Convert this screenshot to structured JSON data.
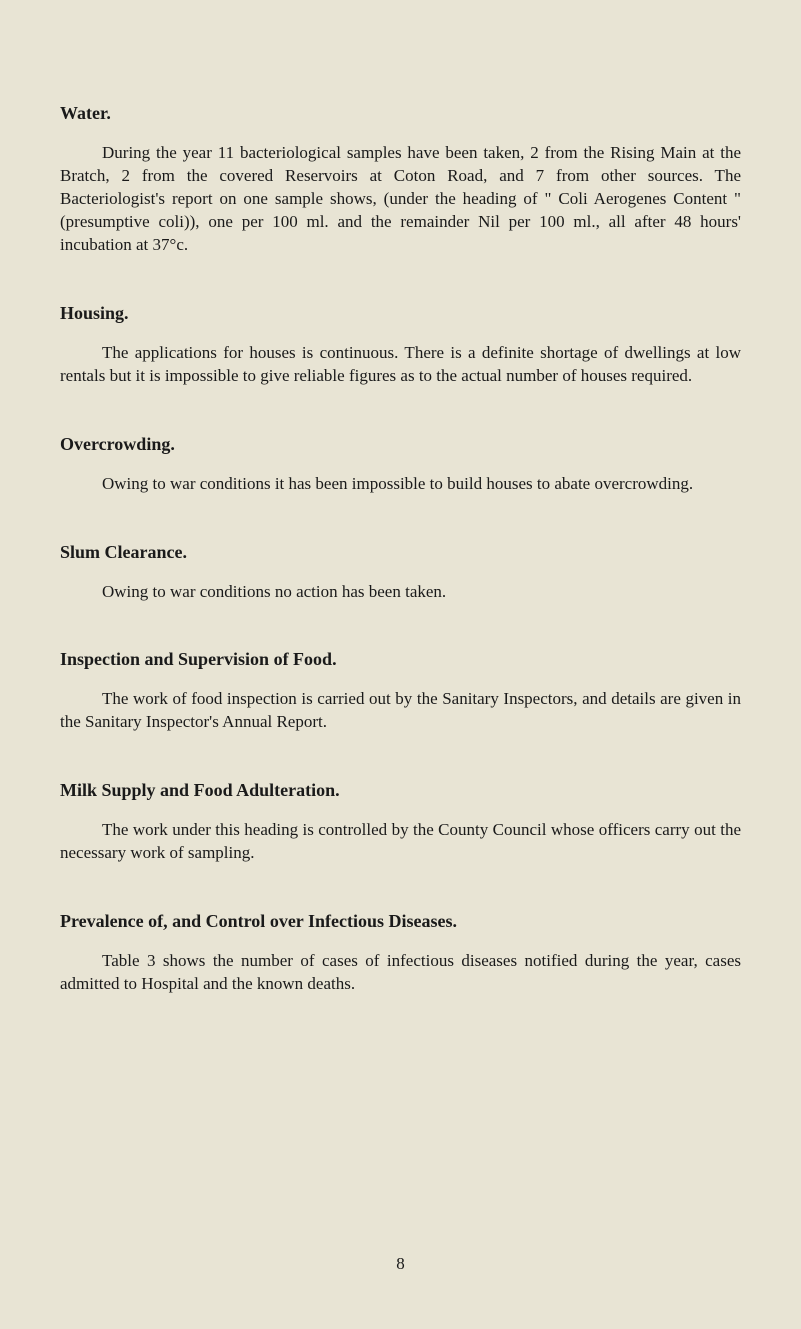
{
  "sections": {
    "water": {
      "heading": "Water.",
      "paragraph": "During the year 11 bacteriological samples have been taken, 2 from the Rising Main at the Bratch, 2 from the covered Reservoirs at Coton Road, and 7 from other sources. The Bacteriologist's report on one sample shows, (under the heading of \" Coli Aerogenes Content \" (presumptive coli)), one per 100 ml. and the remainder Nil per 100 ml., all after 48 hours' incubation at 37°c."
    },
    "housing": {
      "heading": "Housing.",
      "paragraph": "The applications for houses is continuous. There is a definite shortage of dwellings at low rentals but it is impossible to give reliable figures as to the actual number of houses required."
    },
    "overcrowding": {
      "heading": "Overcrowding.",
      "paragraph": "Owing to war conditions it has been impossible to build houses to abate overcrowding."
    },
    "slum": {
      "heading": "Slum Clearance.",
      "paragraph": "Owing to war conditions no action has been taken."
    },
    "inspection": {
      "heading": "Inspection and Supervision of Food.",
      "paragraph": "The work of food inspection is carried out by the Sanitary Inspectors, and details are given in the Sanitary Inspector's Annual Report."
    },
    "milk": {
      "heading": "Milk Supply and Food Adulteration.",
      "paragraph": "The work under this heading is controlled by the County Council whose officers carry out the necessary work of sampling."
    },
    "prevalence": {
      "heading": "Prevalence of, and Control over Infectious Diseases.",
      "paragraph": "Table 3 shows the number of cases of infectious diseases notified during the year, cases admitted to Hospital and the known deaths."
    }
  },
  "page_number": "8",
  "colors": {
    "background": "#e8e4d4",
    "text": "#1a1a1a"
  },
  "typography": {
    "heading_fontsize": 18,
    "body_fontsize": 17,
    "font_family": "serif"
  }
}
